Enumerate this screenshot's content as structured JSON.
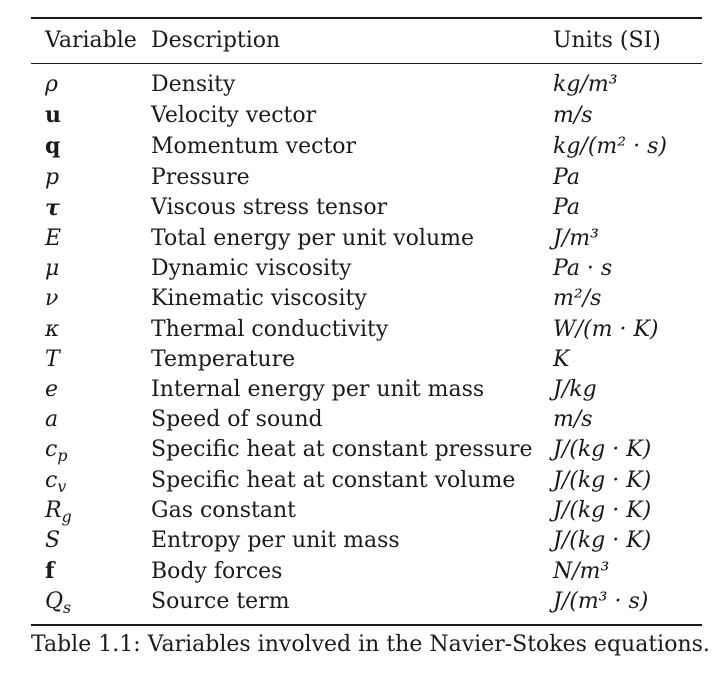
{
  "table": {
    "headers": {
      "variable": "Variable",
      "description": "Description",
      "units": "Units (SI)"
    },
    "rows": [
      {
        "symbol": "ρ",
        "sub": "",
        "style": "it",
        "description": "Density",
        "units": "kg/m³"
      },
      {
        "symbol": "u",
        "sub": "",
        "style": "bf",
        "description": "Velocity vector",
        "units": "m/s"
      },
      {
        "symbol": "q",
        "sub": "",
        "style": "bf",
        "description": "Momentum vector",
        "units": "kg/(m² · s)"
      },
      {
        "symbol": "p",
        "sub": "",
        "style": "it",
        "description": "Pressure",
        "units": "Pa"
      },
      {
        "symbol": "τ",
        "sub": "",
        "style": "bfit",
        "description": "Viscous stress tensor",
        "units": "Pa"
      },
      {
        "symbol": "E",
        "sub": "",
        "style": "it",
        "description": "Total energy per unit volume",
        "units": "J/m³"
      },
      {
        "symbol": "μ",
        "sub": "",
        "style": "it",
        "description": "Dynamic viscosity",
        "units": "Pa · s"
      },
      {
        "symbol": "ν",
        "sub": "",
        "style": "it",
        "description": "Kinematic viscosity",
        "units": "m²/s"
      },
      {
        "symbol": "κ",
        "sub": "",
        "style": "it",
        "description": "Thermal conductivity",
        "units": "W/(m · K)"
      },
      {
        "symbol": "T",
        "sub": "",
        "style": "it",
        "description": "Temperature",
        "units": "K"
      },
      {
        "symbol": "e",
        "sub": "",
        "style": "it",
        "description": "Internal energy per unit mass",
        "units": "J/kg"
      },
      {
        "symbol": "a",
        "sub": "",
        "style": "it",
        "description": "Speed of sound",
        "units": "m/s"
      },
      {
        "symbol": "c",
        "sub": "p",
        "style": "it",
        "description": "Specific heat at constant pressure",
        "units": "J/(kg · K)"
      },
      {
        "symbol": "c",
        "sub": "v",
        "style": "it",
        "description": "Specific heat at constant volume",
        "units": "J/(kg · K)"
      },
      {
        "symbol": "R",
        "sub": "g",
        "style": "it",
        "description": "Gas constant",
        "units": "J/(kg · K)"
      },
      {
        "symbol": "S",
        "sub": "",
        "style": "it",
        "description": "Entropy per unit mass",
        "units": "J/(kg · K)"
      },
      {
        "symbol": "f",
        "sub": "",
        "style": "bf",
        "description": "Body forces",
        "units": "N/m³"
      },
      {
        "symbol": "Q",
        "sub": "s",
        "style": "it",
        "description": "Source term",
        "units": "J/(m³ · s)"
      }
    ]
  },
  "caption": "Table 1.1: Variables involved in the Navier-Stokes equations."
}
